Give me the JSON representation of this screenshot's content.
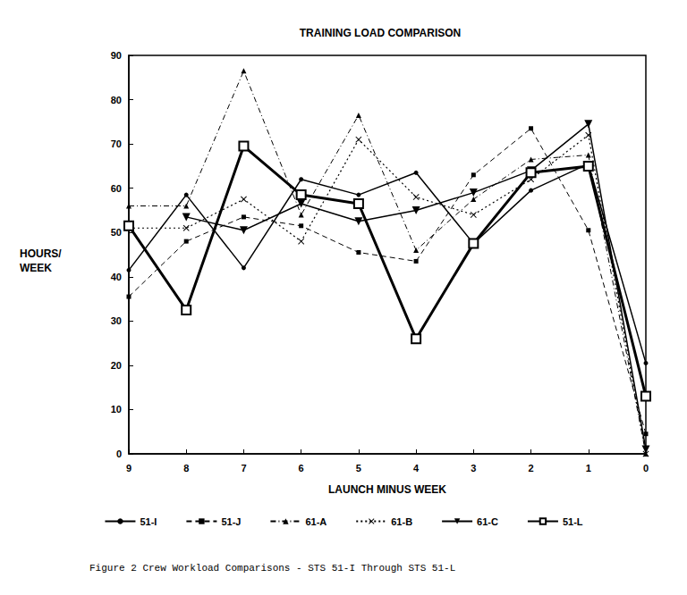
{
  "chart_data": {
    "type": "line",
    "title": "TRAINING LOAD COMPARISON",
    "x_label": "LAUNCH MINUS WEEK",
    "y_label": "HOURS/\nWEEK",
    "caption": "Figure 2 Crew Workload Comparisons - STS 51-I Through STS 51-L",
    "categories": [
      "9",
      "8",
      "7",
      "6",
      "5",
      "4",
      "3",
      "2",
      "1",
      "0"
    ],
    "ylim": [
      0,
      90
    ],
    "yticks": [
      0,
      10,
      20,
      30,
      40,
      50,
      60,
      70,
      80,
      90
    ],
    "grid": false,
    "legend": "bottom",
    "series": [
      {
        "name": "51-I",
        "color": "#000000",
        "marker": "circle",
        "line_style": "solid",
        "values": [
          41.5,
          58.5,
          42,
          62,
          58.5,
          63.5,
          47.5,
          59.5,
          65.5,
          20.5
        ]
      },
      {
        "name": "51-J",
        "color": "#000000",
        "marker": "square",
        "line_style": "dashed",
        "values": [
          35.5,
          48,
          53.5,
          51.5,
          45.5,
          43.5,
          63,
          73.5,
          50.5,
          4.5
        ]
      },
      {
        "name": "61-A",
        "color": "#000000",
        "marker": "triangle",
        "line_style": "dashdot",
        "values": [
          56,
          56,
          86.5,
          54,
          76.5,
          46,
          57.5,
          66.5,
          67.5,
          0
        ]
      },
      {
        "name": "61-B",
        "color": "#000000",
        "marker": "x",
        "line_style": "dotted",
        "values": [
          51,
          51,
          57.5,
          48,
          71,
          58,
          54,
          62,
          72,
          0
        ]
      },
      {
        "name": "61-C",
        "color": "#000000",
        "marker": "triangle_down",
        "line_style": "solid",
        "values": [
          null,
          53.5,
          50.5,
          56.5,
          52.5,
          55,
          59,
          64,
          74.5,
          1
        ]
      },
      {
        "name": "51-L",
        "color": "#000000",
        "marker": "square_open",
        "line_style": "bold",
        "values": [
          51.5,
          32.5,
          69.5,
          58.5,
          56.5,
          26,
          47.5,
          63.5,
          65,
          13
        ]
      }
    ]
  }
}
